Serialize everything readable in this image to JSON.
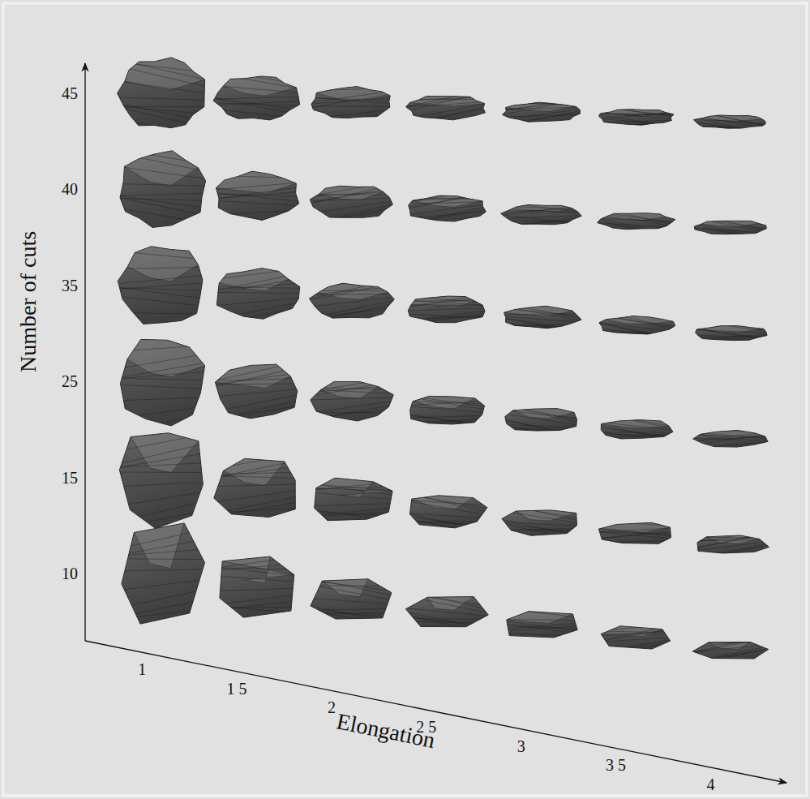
{
  "chart_data": {
    "type": "scatter",
    "x_label": "Elongation",
    "y_label": "Number of cuts",
    "marker": "polyhedron",
    "color": "#4d4d4d",
    "xlim": [
      0.7,
      4.4
    ],
    "xticks": [
      1,
      {
        "value": 1.5,
        "label": "1 5"
      },
      2,
      {
        "value": 2.5,
        "label": "2 5"
      },
      3,
      {
        "value": 3.5,
        "label": "3 5"
      },
      4
    ],
    "yticks": [
      10,
      15,
      25,
      35,
      40,
      45
    ],
    "x": [
      1,
      1.5,
      2,
      2.5,
      3,
      3.5,
      4,
      1,
      1.5,
      2,
      2.5,
      3,
      3.5,
      4,
      1,
      1.5,
      2,
      2.5,
      3,
      3.5,
      4,
      1,
      1.5,
      2,
      2.5,
      3,
      3.5,
      4,
      1,
      1.5,
      2,
      2.5,
      3,
      3.5,
      4,
      1,
      1.5,
      2,
      2.5,
      3,
      3.5,
      4
    ],
    "y": [
      45,
      45,
      45,
      45,
      45,
      45,
      45,
      40,
      40,
      40,
      40,
      40,
      40,
      40,
      35,
      35,
      35,
      35,
      35,
      35,
      35,
      25,
      25,
      25,
      25,
      25,
      25,
      25,
      15,
      15,
      15,
      15,
      15,
      15,
      15,
      10,
      10,
      10,
      10,
      10,
      10,
      10
    ]
  }
}
